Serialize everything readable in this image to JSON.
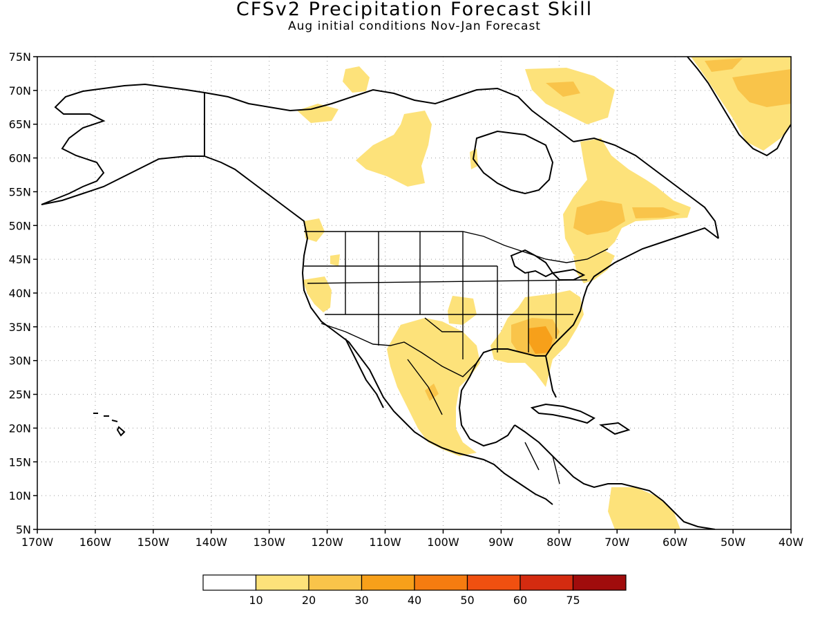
{
  "title": "CFSv2 Precipitation Forecast Skill",
  "subtitle": "Aug initial conditions  Nov-Jan Forecast",
  "map": {
    "lon_range": [
      -170,
      -40
    ],
    "lat_range": [
      5,
      75
    ],
    "grid": true,
    "lat_labels": [
      "75N",
      "70N",
      "65N",
      "60N",
      "55N",
      "50N",
      "45N",
      "40N",
      "35N",
      "30N",
      "25N",
      "20N",
      "15N",
      "10N",
      "5N"
    ],
    "lon_labels": [
      "170W",
      "160W",
      "150W",
      "140W",
      "130W",
      "120W",
      "110W",
      "100W",
      "90W",
      "80W",
      "70W",
      "60W",
      "50W",
      "40W"
    ]
  },
  "colorbar": {
    "colors": [
      "#ffffff",
      "#fde27a",
      "#f9c44a",
      "#f7a01a",
      "#f57c10",
      "#f05010",
      "#d42b10",
      "#a00c0c"
    ],
    "labels": [
      "10",
      "20",
      "30",
      "40",
      "50",
      "60",
      "75"
    ]
  },
  "colors": {
    "level1": "#fde27a",
    "level2": "#f9c44a",
    "level3": "#f7a01a"
  }
}
